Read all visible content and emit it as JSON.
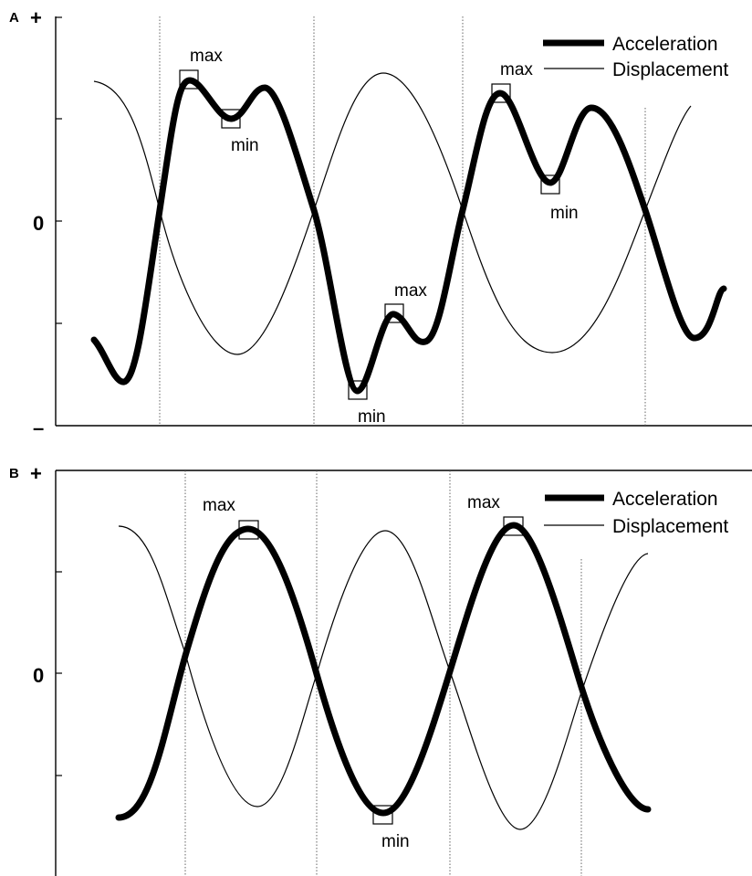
{
  "chart_data": [
    {
      "type": "line",
      "panel": "A",
      "y_ticks": {
        "top": "+",
        "zero": "0",
        "bottom": "–"
      },
      "ylim": [
        -1,
        1
      ],
      "xlim": [
        0,
        4.2
      ],
      "grid": "dotted vertical lines at zero crossings",
      "legend_position": "top-right",
      "legend": [
        "Acceleration",
        "Displacement"
      ],
      "series": [
        {
          "name": "Acceleration",
          "x": [
            0,
            0.2,
            0.45,
            0.85,
            1.2,
            1.45,
            1.7,
            2.05,
            2.3,
            2.5,
            2.75,
            3.0,
            3.25,
            3.35,
            3.5,
            3.75,
            4.0,
            4.2
          ],
          "y": [
            -0.58,
            -0.78,
            0.1,
            0.7,
            0.51,
            0.66,
            0.09,
            -0.83,
            -0.46,
            -0.6,
            0.03,
            0.63,
            0.21,
            0.2,
            0.55,
            0.05,
            -0.57,
            -0.33
          ]
        },
        {
          "name": "Displacement",
          "x": [
            0,
            0.5,
            1.0,
            1.5,
            2.0,
            2.5,
            3.0,
            3.5,
            4.0
          ],
          "y": [
            0.68,
            0.0,
            -0.66,
            0.0,
            0.72,
            0.0,
            -0.65,
            0.0,
            0.56
          ]
        }
      ],
      "annotations": [
        {
          "text": "max",
          "x": 0.25,
          "y": 0.7
        },
        {
          "text": "min",
          "x": 0.45,
          "y": 0.51
        },
        {
          "text": "max",
          "x": 2.2,
          "y": -0.46
        },
        {
          "text": "min",
          "x": 1.8,
          "y": -0.83
        },
        {
          "text": "max",
          "x": 2.9,
          "y": 0.63
        },
        {
          "text": "min",
          "x": 3.25,
          "y": 0.2
        }
      ]
    },
    {
      "type": "line",
      "panel": "B",
      "y_ticks": {
        "top": "+",
        "zero": "0"
      },
      "ylim": [
        -1,
        1
      ],
      "xlim": [
        0,
        3.5
      ],
      "grid": "dotted vertical lines at zero crossings",
      "legend_position": "top-right",
      "legend": [
        "Acceleration",
        "Displacement"
      ],
      "series": [
        {
          "name": "Acceleration",
          "x": [
            0,
            0.44,
            0.88,
            1.32,
            1.76,
            2.2,
            2.64,
            3.08,
            3.5
          ],
          "y": [
            -0.7,
            0.0,
            0.7,
            0.0,
            -0.72,
            0.0,
            0.72,
            0.0,
            -0.7
          ]
        },
        {
          "name": "Displacement",
          "x": [
            0,
            0.44,
            0.88,
            1.32,
            1.76,
            2.2,
            2.64,
            3.08,
            3.5
          ],
          "y": [
            0.72,
            0.0,
            -0.66,
            0.0,
            0.69,
            0.0,
            -0.74,
            0.0,
            0.58
          ]
        }
      ],
      "annotations": [
        {
          "text": "max",
          "x": 0.88,
          "y": 0.7
        },
        {
          "text": "min",
          "x": 1.76,
          "y": -0.72
        },
        {
          "text": "max",
          "x": 2.64,
          "y": 0.72
        }
      ]
    }
  ]
}
